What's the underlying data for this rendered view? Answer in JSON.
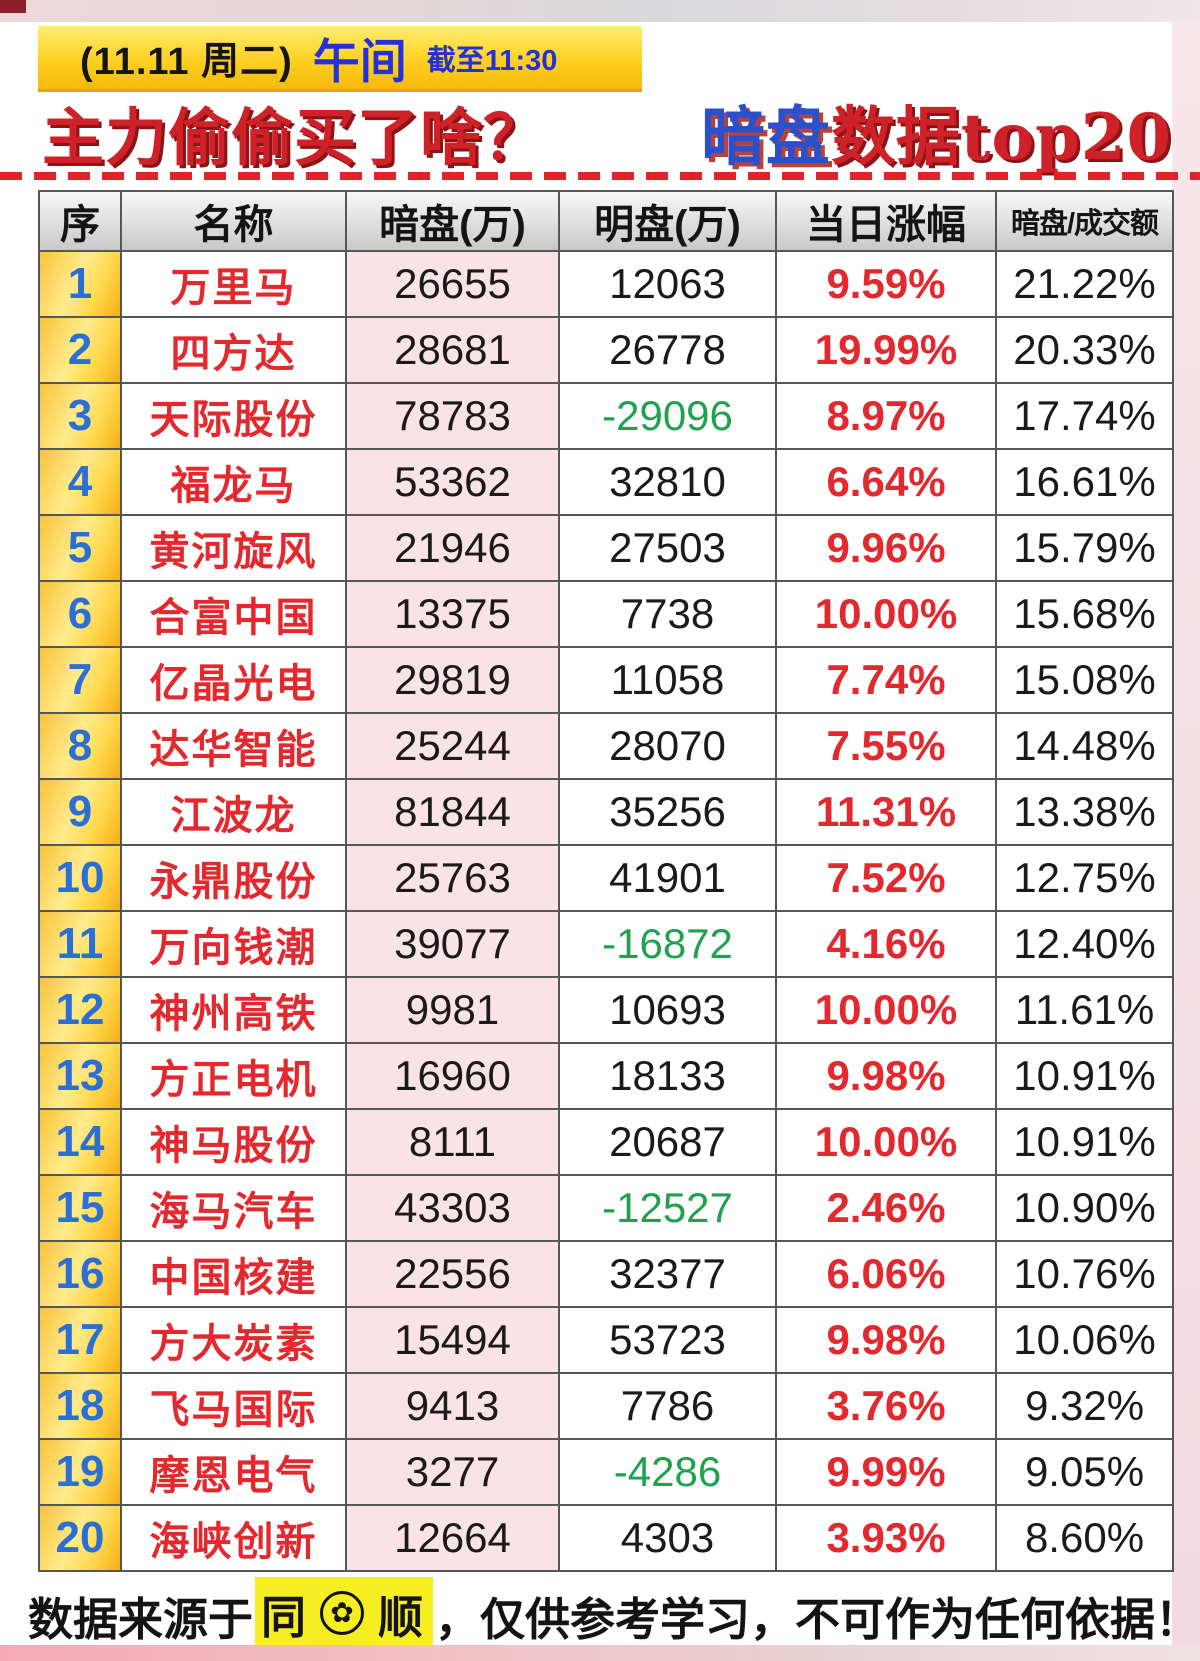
{
  "masthead": {
    "date": "(11.11 周二)",
    "session": "午间",
    "cutoff": "截至11:30",
    "title_left": "主力偷偷买了啥？",
    "title_blue": "暗盘",
    "title_red": "数据top20"
  },
  "chart_data": {
    "type": "table",
    "title": "主力偷偷买了啥？ 暗盘数据top20",
    "subtitle": "(11.11 周二) 午间 截至11:30",
    "columns": [
      "序",
      "名称",
      "暗盘(万)",
      "明盘(万)",
      "当日涨幅",
      "暗盘/成交额"
    ],
    "rows": [
      [
        1,
        "万里马",
        26655,
        12063,
        "9.59%",
        "21.22%"
      ],
      [
        2,
        "四方达",
        28681,
        26778,
        "19.99%",
        "20.33%"
      ],
      [
        3,
        "天际股份",
        78783,
        -29096,
        "8.97%",
        "17.74%"
      ],
      [
        4,
        "福龙马",
        53362,
        32810,
        "6.64%",
        "16.61%"
      ],
      [
        5,
        "黄河旋风",
        21946,
        27503,
        "9.96%",
        "15.79%"
      ],
      [
        6,
        "合富中国",
        13375,
        7738,
        "10.00%",
        "15.68%"
      ],
      [
        7,
        "亿晶光电",
        29819,
        11058,
        "7.74%",
        "15.08%"
      ],
      [
        8,
        "达华智能",
        25244,
        28070,
        "7.55%",
        "14.48%"
      ],
      [
        9,
        "江波龙",
        81844,
        35256,
        "11.31%",
        "13.38%"
      ],
      [
        10,
        "永鼎股份",
        25763,
        41901,
        "7.52%",
        "12.75%"
      ],
      [
        11,
        "万向钱潮",
        39077,
        -16872,
        "4.16%",
        "12.40%"
      ],
      [
        12,
        "神州高铁",
        9981,
        10693,
        "10.00%",
        "11.61%"
      ],
      [
        13,
        "方正电机",
        16960,
        18133,
        "9.98%",
        "10.91%"
      ],
      [
        14,
        "神马股份",
        8111,
        20687,
        "10.00%",
        "10.91%"
      ],
      [
        15,
        "海马汽车",
        43303,
        -12527,
        "2.46%",
        "10.90%"
      ],
      [
        16,
        "中国核建",
        22556,
        32377,
        "6.06%",
        "10.76%"
      ],
      [
        17,
        "方大炭素",
        15494,
        53723,
        "9.98%",
        "10.06%"
      ],
      [
        18,
        "飞马国际",
        9413,
        7786,
        "3.76%",
        "9.32%"
      ],
      [
        19,
        "摩恩电气",
        3277,
        -4286,
        "9.99%",
        "9.05%"
      ],
      [
        20,
        "海峡创新",
        12664,
        4303,
        "3.93%",
        "8.60%"
      ]
    ]
  },
  "footer": {
    "prefix": "数据来源于",
    "source_left": "同",
    "flower_icon": "✿",
    "source_right": "顺",
    "suffix": "，仅供参考学习，不可作为任何依据！"
  },
  "colors": {
    "headline_red": "#cf2128",
    "headline_blue": "#2b50cc",
    "badge_yellow": "#fdd023",
    "badge_text_blue": "#2430d8",
    "rank_gold": "#fcd34b",
    "rank_number_blue": "#2c6fd4",
    "name_red": "#e3282e",
    "dark_pool_pink": "#fae3e7",
    "negative_green": "#1fa24e",
    "change_red": "#e3282e",
    "highlight_yellow": "#f6ee20",
    "dashed_line_red": "#e02428",
    "bottom_bar_pink": "#f5aab3"
  }
}
